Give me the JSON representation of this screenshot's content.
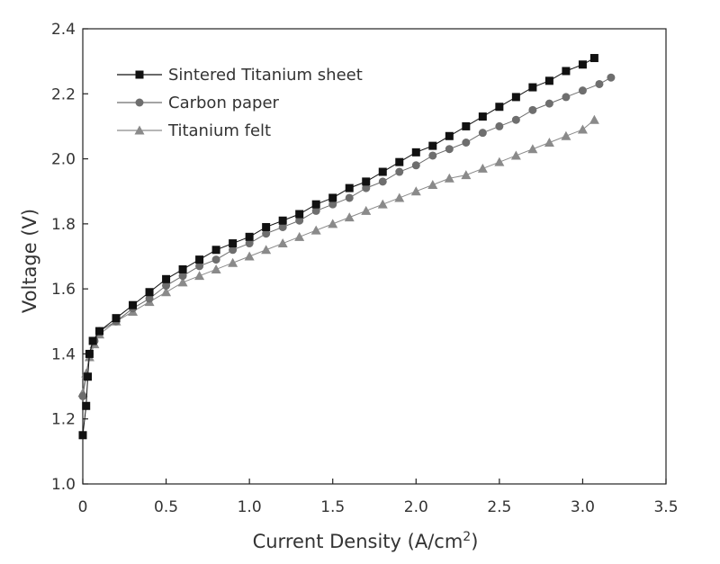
{
  "chart_data": {
    "type": "scatter",
    "title": "",
    "xlabel": "Current Density (A/cm",
    "xlabel_sup": "2",
    "xlabel_suffix": ")",
    "ylabel": "Voltage (V)",
    "xlim": [
      0,
      3.5
    ],
    "ylim": [
      1.0,
      2.4
    ],
    "x_ticks": [
      "0",
      "0.5",
      "1.0",
      "1.5",
      "2.0",
      "2.5",
      "3.0",
      "3.5"
    ],
    "y_ticks": [
      "1.0",
      "1.2",
      "1.4",
      "1.6",
      "1.8",
      "2.0",
      "2.2",
      "2.4"
    ],
    "grid": false,
    "legend_position": "top-left",
    "series": [
      {
        "name": "Sintered Titanium sheet",
        "marker": "square",
        "color": "#111111",
        "points": [
          [
            0.0,
            1.15
          ],
          [
            0.02,
            1.24
          ],
          [
            0.03,
            1.33
          ],
          [
            0.04,
            1.4
          ],
          [
            0.06,
            1.44
          ],
          [
            0.1,
            1.47
          ],
          [
            0.2,
            1.51
          ],
          [
            0.3,
            1.55
          ],
          [
            0.4,
            1.59
          ],
          [
            0.5,
            1.63
          ],
          [
            0.6,
            1.66
          ],
          [
            0.7,
            1.69
          ],
          [
            0.8,
            1.72
          ],
          [
            0.9,
            1.74
          ],
          [
            1.0,
            1.76
          ],
          [
            1.1,
            1.79
          ],
          [
            1.2,
            1.81
          ],
          [
            1.3,
            1.83
          ],
          [
            1.4,
            1.86
          ],
          [
            1.5,
            1.88
          ],
          [
            1.6,
            1.91
          ],
          [
            1.7,
            1.93
          ],
          [
            1.8,
            1.96
          ],
          [
            1.9,
            1.99
          ],
          [
            2.0,
            2.02
          ],
          [
            2.1,
            2.04
          ],
          [
            2.2,
            2.07
          ],
          [
            2.3,
            2.1
          ],
          [
            2.4,
            2.13
          ],
          [
            2.5,
            2.16
          ],
          [
            2.6,
            2.19
          ],
          [
            2.7,
            2.22
          ],
          [
            2.8,
            2.24
          ],
          [
            2.9,
            2.27
          ],
          [
            3.0,
            2.29
          ],
          [
            3.07,
            2.31
          ]
        ]
      },
      {
        "name": "Carbon paper",
        "marker": "circle",
        "color": "#6e6e6e",
        "points": [
          [
            0.0,
            1.27
          ],
          [
            0.02,
            1.33
          ],
          [
            0.04,
            1.4
          ],
          [
            0.07,
            1.44
          ],
          [
            0.1,
            1.47
          ],
          [
            0.2,
            1.5
          ],
          [
            0.3,
            1.54
          ],
          [
            0.4,
            1.57
          ],
          [
            0.5,
            1.61
          ],
          [
            0.6,
            1.64
          ],
          [
            0.7,
            1.67
          ],
          [
            0.8,
            1.69
          ],
          [
            0.9,
            1.72
          ],
          [
            1.0,
            1.74
          ],
          [
            1.1,
            1.77
          ],
          [
            1.2,
            1.79
          ],
          [
            1.3,
            1.81
          ],
          [
            1.4,
            1.84
          ],
          [
            1.5,
            1.86
          ],
          [
            1.6,
            1.88
          ],
          [
            1.7,
            1.91
          ],
          [
            1.8,
            1.93
          ],
          [
            1.9,
            1.96
          ],
          [
            2.0,
            1.98
          ],
          [
            2.1,
            2.01
          ],
          [
            2.2,
            2.03
          ],
          [
            2.3,
            2.05
          ],
          [
            2.4,
            2.08
          ],
          [
            2.5,
            2.1
          ],
          [
            2.6,
            2.12
          ],
          [
            2.7,
            2.15
          ],
          [
            2.8,
            2.17
          ],
          [
            2.9,
            2.19
          ],
          [
            3.0,
            2.21
          ],
          [
            3.1,
            2.23
          ],
          [
            3.17,
            2.25
          ]
        ]
      },
      {
        "name": "Titanium felt",
        "marker": "triangle",
        "color": "#8a8a8a",
        "points": [
          [
            0.0,
            1.28
          ],
          [
            0.02,
            1.34
          ],
          [
            0.04,
            1.39
          ],
          [
            0.07,
            1.43
          ],
          [
            0.1,
            1.46
          ],
          [
            0.2,
            1.5
          ],
          [
            0.3,
            1.53
          ],
          [
            0.4,
            1.56
          ],
          [
            0.5,
            1.59
          ],
          [
            0.6,
            1.62
          ],
          [
            0.7,
            1.64
          ],
          [
            0.8,
            1.66
          ],
          [
            0.9,
            1.68
          ],
          [
            1.0,
            1.7
          ],
          [
            1.1,
            1.72
          ],
          [
            1.2,
            1.74
          ],
          [
            1.3,
            1.76
          ],
          [
            1.4,
            1.78
          ],
          [
            1.5,
            1.8
          ],
          [
            1.6,
            1.82
          ],
          [
            1.7,
            1.84
          ],
          [
            1.8,
            1.86
          ],
          [
            1.9,
            1.88
          ],
          [
            2.0,
            1.9
          ],
          [
            2.1,
            1.92
          ],
          [
            2.2,
            1.94
          ],
          [
            2.3,
            1.95
          ],
          [
            2.4,
            1.97
          ],
          [
            2.5,
            1.99
          ],
          [
            2.6,
            2.01
          ],
          [
            2.7,
            2.03
          ],
          [
            2.8,
            2.05
          ],
          [
            2.9,
            2.07
          ],
          [
            3.0,
            2.09
          ],
          [
            3.07,
            2.12
          ]
        ]
      }
    ]
  }
}
